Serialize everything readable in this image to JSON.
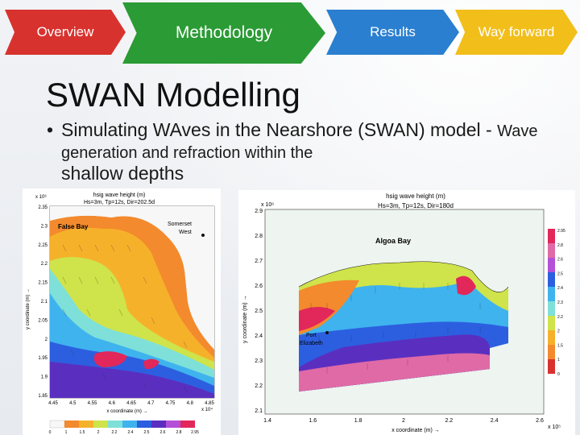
{
  "nav": {
    "tabs": [
      {
        "label": "Overview"
      },
      {
        "label": "Methodology"
      },
      {
        "label": "Results"
      },
      {
        "label": "Way forward"
      }
    ]
  },
  "slide": {
    "title": "SWAN Modelling",
    "bullet_main": "Simulating WAves in the Nearshore (SWAN) model",
    "bullet_dash": " - ",
    "bullet_rest": "Wave generation and refraction within the",
    "bullet_last": "shallow depths"
  },
  "left_map": {
    "title": "hsig wave height (m)",
    "params": "Hs=3m, Tp=12s, Dir=202.5d",
    "place1": "False Bay",
    "place2": "Somerset",
    "place3": "West",
    "exp_top": "x 10⁶",
    "exp_bottom": "x 10⁴",
    "ylabel": "y coordinate (m) →",
    "xlabel": "x coordinate (m) →",
    "yticks": [
      "2.35",
      "2.3",
      "2.25",
      "2.2",
      "2.15",
      "2.1",
      "2.05",
      "2",
      "1.95",
      "1.9",
      "1.85"
    ],
    "xticks": [
      "4.45",
      "4.5",
      "4.55",
      "4.6",
      "4.65",
      "4.7",
      "4.75",
      "4.8",
      "4.85"
    ],
    "cbar_ticks": [
      "0",
      "1",
      "1.5",
      "2",
      "2.2",
      "2.4",
      "2.5",
      "2.6",
      "2.8",
      "2.95"
    ]
  },
  "right_map": {
    "title": "hsig wave height (m)",
    "params": "Hs=3m, Tp=12s, Dir=180d",
    "place1": "Algoa Bay",
    "place2": "Port",
    "place3": "Elizabeth",
    "exp_top": "x 10⁶",
    "exp_bottom": "x 10⁵",
    "ylabel": "y coordinate (m) →",
    "xlabel": "x coordinate (m) →",
    "yticks": [
      "2.9",
      "2.8",
      "2.7",
      "2.6",
      "2.5",
      "2.4",
      "2.3",
      "2.2",
      "2.1"
    ],
    "xticks": [
      "1.4",
      "1.6",
      "1.8",
      "2",
      "2.2",
      "2.4",
      "2.6"
    ],
    "cbar_ticks": [
      "2.95",
      "2.8",
      "2.6",
      "2.5",
      "2.4",
      "2.3",
      "2.2",
      "2",
      "1.5",
      "1",
      "0"
    ]
  }
}
